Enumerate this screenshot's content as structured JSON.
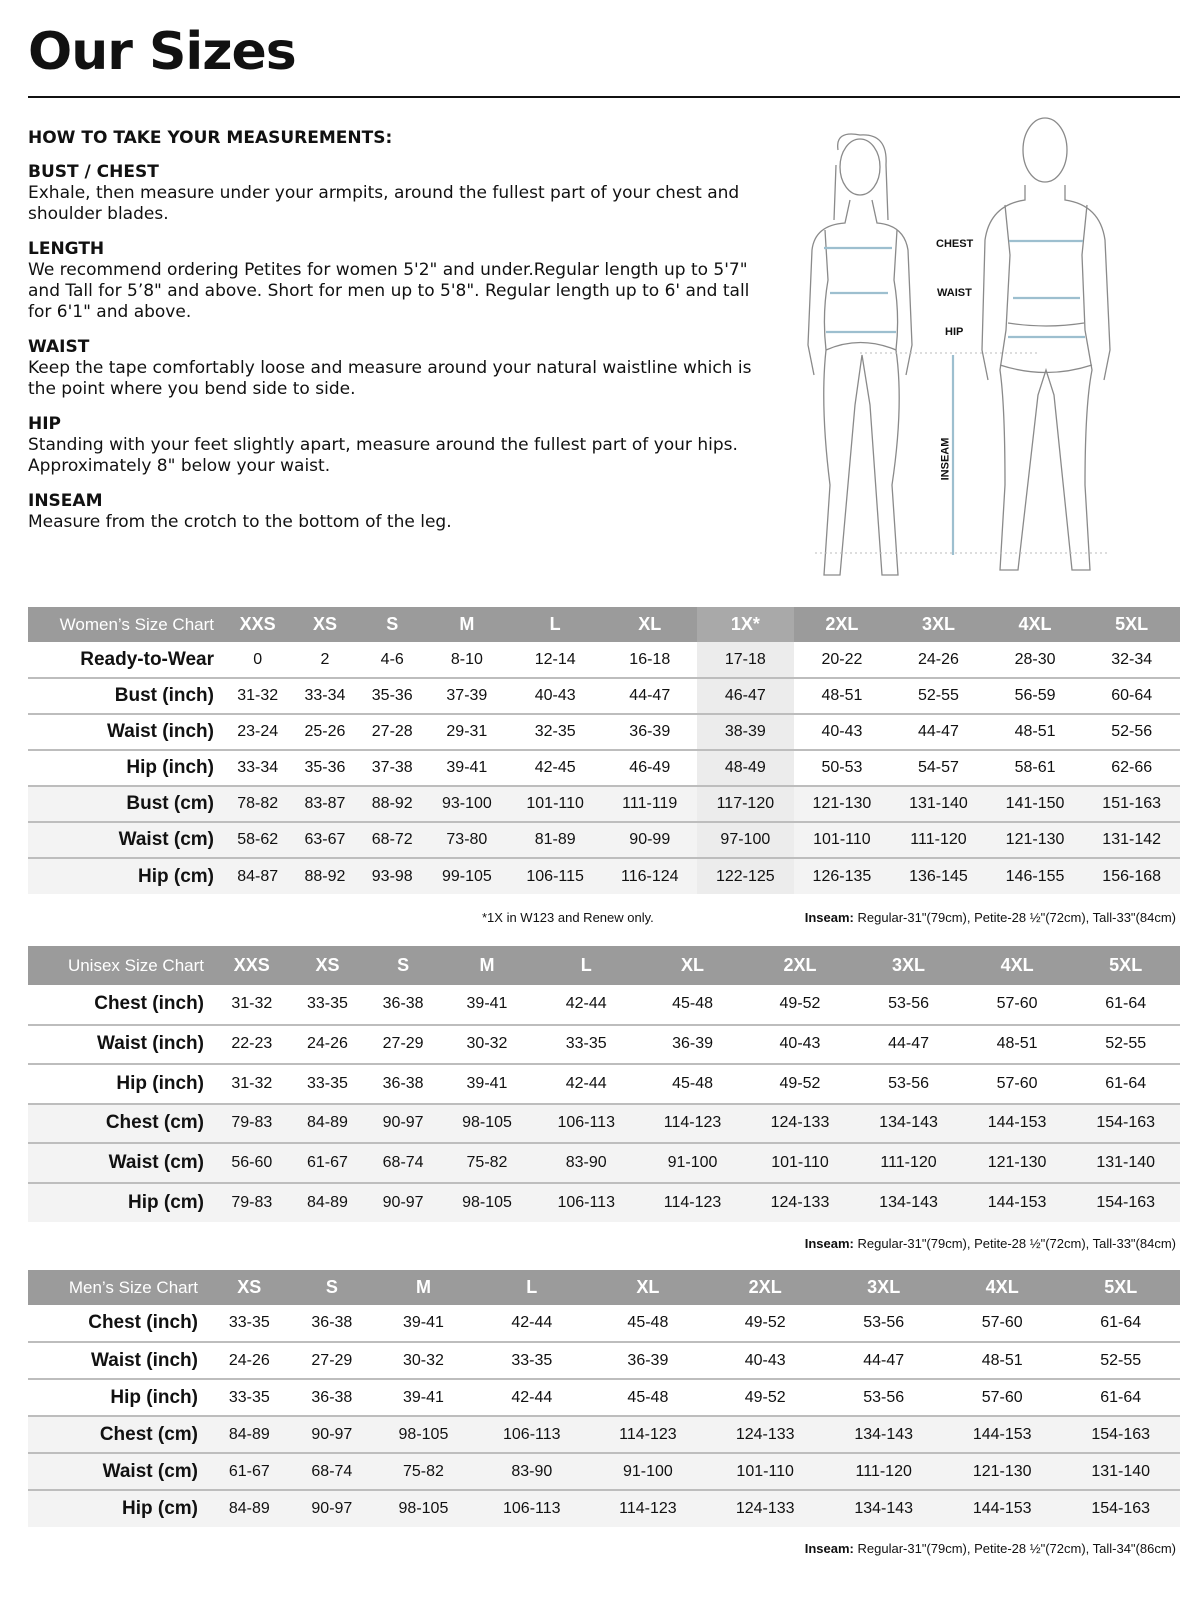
{
  "title": "Our Sizes",
  "guide": {
    "heading": "HOW TO TAKE YOUR MEASUREMENTS:",
    "sections": [
      {
        "title": "BUST / CHEST",
        "text": "Exhale, then measure under your armpits, around the fullest part of your chest and shoulder blades."
      },
      {
        "title": "LENGTH",
        "text": "We recommend ordering Petites for women 5'2\" and under.Regular length up to 5'7\" and Tall for 5’8\" and above. Short for men up to 5'8\". Regular length up to 6' and tall for 6'1\" and above."
      },
      {
        "title": "WAIST",
        "text": "Keep the tape comfortably loose and measure around your natural waistline which is the point where you bend side to side."
      },
      {
        "title": "HIP",
        "text": "Standing with your feet slightly apart, measure around the fullest part of your hips. Approximately 8\" below your waist."
      },
      {
        "title": "INSEAM",
        "text": "Measure from the crotch to the bottom of the leg."
      }
    ]
  },
  "figure": {
    "labels": {
      "chest": "CHEST",
      "waist": "WAIST",
      "hip": "HIP",
      "inseam": "INSEAM"
    },
    "measure_color": "#9dbfcf"
  },
  "women": {
    "header": "Women’s Size Chart",
    "sizes": [
      "XXS",
      "XS",
      "S",
      "M",
      "L",
      "XL",
      "1X*",
      "2XL",
      "3XL",
      "4XL",
      "5XL"
    ],
    "highlight_column": "1X*",
    "rows": [
      {
        "label": "Ready-to-Wear",
        "values": [
          "0",
          "2",
          "4-6",
          "8-10",
          "12-14",
          "16-18",
          "17-18",
          "20-22",
          "24-26",
          "28-30",
          "32-34"
        ]
      },
      {
        "label": "Bust (inch)",
        "values": [
          "31-32",
          "33-34",
          "35-36",
          "37-39",
          "40-43",
          "44-47",
          "46-47",
          "48-51",
          "52-55",
          "56-59",
          "60-64"
        ]
      },
      {
        "label": "Waist (inch)",
        "values": [
          "23-24",
          "25-26",
          "27-28",
          "29-31",
          "32-35",
          "36-39",
          "38-39",
          "40-43",
          "44-47",
          "48-51",
          "52-56"
        ]
      },
      {
        "label": "Hip (inch)",
        "values": [
          "33-34",
          "35-36",
          "37-38",
          "39-41",
          "42-45",
          "46-49",
          "48-49",
          "50-53",
          "54-57",
          "58-61",
          "62-66"
        ]
      },
      {
        "label": "Bust (cm)",
        "values": [
          "78-82",
          "83-87",
          "88-92",
          "93-100",
          "101-110",
          "111-119",
          "117-120",
          "121-130",
          "131-140",
          "141-150",
          "151-163"
        ]
      },
      {
        "label": "Waist (cm)",
        "values": [
          "58-62",
          "63-67",
          "68-72",
          "73-80",
          "81-89",
          "90-99",
          "97-100",
          "101-110",
          "111-120",
          "121-130",
          "131-142"
        ]
      },
      {
        "label": "Hip (cm)",
        "values": [
          "84-87",
          "88-92",
          "93-98",
          "99-105",
          "106-115",
          "116-124",
          "122-125",
          "126-135",
          "136-145",
          "146-155",
          "156-168"
        ]
      }
    ],
    "footnote": "*1X in W123 and Renew only.",
    "inseam_label": "Inseam:",
    "inseam_text": " Regular-31\"(79cm), Petite-28 ½\"(72cm), Tall-33\"(84cm)"
  },
  "unisex": {
    "header": "Unisex Size Chart",
    "sizes": [
      "XXS",
      "XS",
      "S",
      "M",
      "L",
      "XL",
      "2XL",
      "3XL",
      "4XL",
      "5XL"
    ],
    "rows": [
      {
        "label": "Chest (inch)",
        "values": [
          "31-32",
          "33-35",
          "36-38",
          "39-41",
          "42-44",
          "45-48",
          "49-52",
          "53-56",
          "57-60",
          "61-64"
        ]
      },
      {
        "label": "Waist (inch)",
        "values": [
          "22-23",
          "24-26",
          "27-29",
          "30-32",
          "33-35",
          "36-39",
          "40-43",
          "44-47",
          "48-51",
          "52-55"
        ]
      },
      {
        "label": "Hip (inch)",
        "values": [
          "31-32",
          "33-35",
          "36-38",
          "39-41",
          "42-44",
          "45-48",
          "49-52",
          "53-56",
          "57-60",
          "61-64"
        ]
      },
      {
        "label": "Chest (cm)",
        "values": [
          "79-83",
          "84-89",
          "90-97",
          "98-105",
          "106-113",
          "114-123",
          "124-133",
          "134-143",
          "144-153",
          "154-163"
        ]
      },
      {
        "label": "Waist (cm)",
        "values": [
          "56-60",
          "61-67",
          "68-74",
          "75-82",
          "83-90",
          "91-100",
          "101-110",
          "111-120",
          "121-130",
          "131-140"
        ]
      },
      {
        "label": "Hip (cm)",
        "values": [
          "79-83",
          "84-89",
          "90-97",
          "98-105",
          "106-113",
          "114-123",
          "124-133",
          "134-143",
          "144-153",
          "154-163"
        ]
      }
    ],
    "inseam_label": "Inseam:",
    "inseam_text": " Regular-31\"(79cm), Petite-28 ½\"(72cm), Tall-33\"(84cm)"
  },
  "men": {
    "header": "Men’s Size Chart",
    "sizes": [
      "XS",
      "S",
      "M",
      "L",
      "XL",
      "2XL",
      "3XL",
      "4XL",
      "5XL"
    ],
    "rows": [
      {
        "label": "Chest (inch)",
        "values": [
          "33-35",
          "36-38",
          "39-41",
          "42-44",
          "45-48",
          "49-52",
          "53-56",
          "57-60",
          "61-64"
        ]
      },
      {
        "label": "Waist (inch)",
        "values": [
          "24-26",
          "27-29",
          "30-32",
          "33-35",
          "36-39",
          "40-43",
          "44-47",
          "48-51",
          "52-55"
        ]
      },
      {
        "label": "Hip (inch)",
        "values": [
          "33-35",
          "36-38",
          "39-41",
          "42-44",
          "45-48",
          "49-52",
          "53-56",
          "57-60",
          "61-64"
        ]
      },
      {
        "label": "Chest (cm)",
        "values": [
          "84-89",
          "90-97",
          "98-105",
          "106-113",
          "114-123",
          "124-133",
          "134-143",
          "144-153",
          "154-163"
        ]
      },
      {
        "label": "Waist (cm)",
        "values": [
          "61-67",
          "68-74",
          "75-82",
          "83-90",
          "91-100",
          "101-110",
          "111-120",
          "121-130",
          "131-140"
        ]
      },
      {
        "label": "Hip (cm)",
        "values": [
          "84-89",
          "90-97",
          "98-105",
          "106-113",
          "114-123",
          "124-133",
          "134-143",
          "144-153",
          "154-163"
        ]
      }
    ],
    "inseam_label": "Inseam:",
    "inseam_text": " Regular-31\"(79cm), Petite-28 ½\"(72cm), Tall-34\"(86cm)"
  }
}
